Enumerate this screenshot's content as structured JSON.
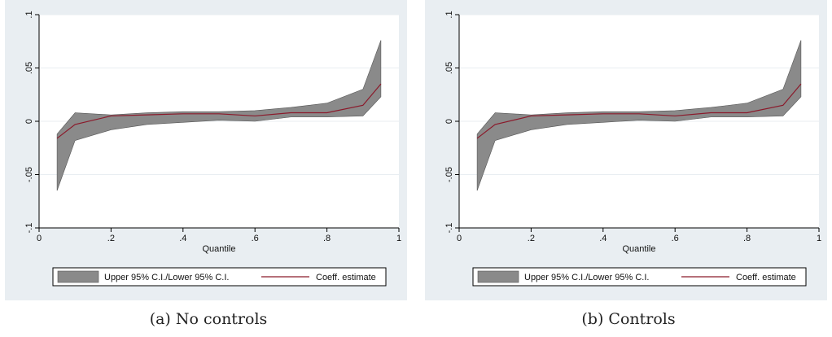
{
  "figure": {
    "captions": [
      "(a)  No controls",
      "(b)  Controls"
    ]
  },
  "chart_data": [
    {
      "type": "area",
      "xlabel": "Quantile",
      "ylabel": "",
      "xlim": [
        0,
        1
      ],
      "ylim": [
        -0.1,
        0.1
      ],
      "x_ticks": [
        0,
        0.2,
        0.4,
        0.6,
        0.8,
        1
      ],
      "x_tick_labels": [
        "0",
        ".2",
        ".4",
        ".6",
        ".8",
        "1"
      ],
      "y_ticks": [
        -0.1,
        -0.05,
        0,
        0.05,
        0.1
      ],
      "y_tick_labels": [
        "-.1",
        "-.05",
        "0",
        ".05",
        ".1"
      ],
      "grid": true,
      "legend_position": "bottom",
      "colors": {
        "band": "#8a8a8a",
        "line": "#8b1a2b",
        "grid": "#ffffff",
        "plot_bg": "#ffffff",
        "outer_bg": "#e9eef2"
      },
      "x": [
        0.05,
        0.1,
        0.2,
        0.3,
        0.4,
        0.5,
        0.6,
        0.7,
        0.8,
        0.9,
        0.95
      ],
      "series": [
        {
          "name": "Upper 95% C.I./Lower 95% C.I.",
          "kind": "band",
          "upper": [
            -0.012,
            0.008,
            0.006,
            0.008,
            0.009,
            0.009,
            0.01,
            0.013,
            0.017,
            0.03,
            0.076
          ],
          "lower": [
            -0.065,
            -0.018,
            -0.008,
            -0.003,
            -0.001,
            0.001,
            0.0,
            0.004,
            0.004,
            0.005,
            0.023
          ]
        },
        {
          "name": "Coeff. estimate",
          "kind": "line",
          "values": [
            -0.016,
            -0.003,
            0.005,
            0.006,
            0.007,
            0.007,
            0.005,
            0.008,
            0.008,
            0.015,
            0.035
          ]
        }
      ]
    },
    {
      "type": "area",
      "xlabel": "Quantile",
      "ylabel": "",
      "xlim": [
        0,
        1
      ],
      "ylim": [
        -0.1,
        0.1
      ],
      "x_ticks": [
        0,
        0.2,
        0.4,
        0.6,
        0.8,
        1
      ],
      "x_tick_labels": [
        "0",
        ".2",
        ".4",
        ".6",
        ".8",
        "1"
      ],
      "y_ticks": [
        -0.1,
        -0.05,
        0,
        0.05,
        0.1
      ],
      "y_tick_labels": [
        "-.1",
        "-.05",
        "0",
        ".05",
        ".1"
      ],
      "grid": true,
      "legend_position": "bottom",
      "colors": {
        "band": "#8a8a8a",
        "line": "#8b1a2b",
        "grid": "#ffffff",
        "plot_bg": "#ffffff",
        "outer_bg": "#e9eef2"
      },
      "x": [
        0.05,
        0.1,
        0.2,
        0.3,
        0.4,
        0.5,
        0.6,
        0.7,
        0.8,
        0.9,
        0.95
      ],
      "series": [
        {
          "name": "Upper 95% C.I./Lower 95% C.I.",
          "kind": "band",
          "upper": [
            -0.012,
            0.008,
            0.006,
            0.008,
            0.009,
            0.009,
            0.01,
            0.013,
            0.017,
            0.03,
            0.076
          ],
          "lower": [
            -0.065,
            -0.018,
            -0.008,
            -0.003,
            -0.001,
            0.001,
            0.0,
            0.004,
            0.004,
            0.005,
            0.023
          ]
        },
        {
          "name": "Coeff. estimate",
          "kind": "line",
          "values": [
            -0.016,
            -0.003,
            0.005,
            0.006,
            0.007,
            0.007,
            0.005,
            0.008,
            0.008,
            0.015,
            0.035
          ]
        }
      ]
    }
  ]
}
